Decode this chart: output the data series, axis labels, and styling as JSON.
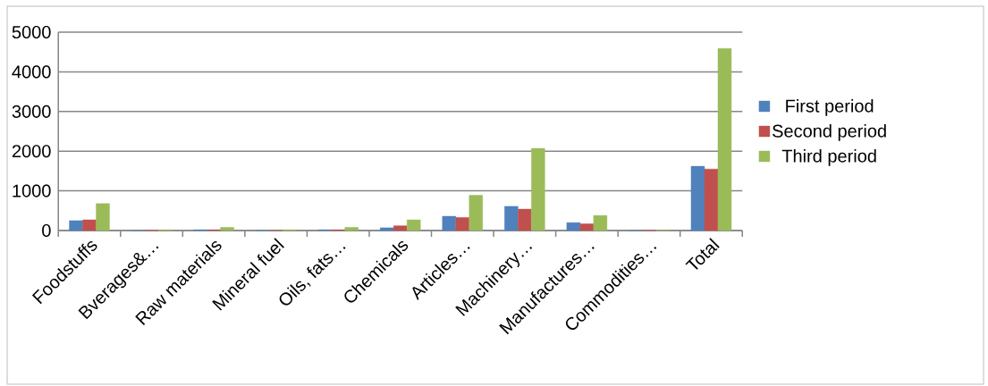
{
  "chart_data": {
    "type": "bar",
    "categories": [
      "Foodstuffs",
      "Bverages&…",
      "Raw materials",
      "Mineral fuel",
      "Oils, fats…",
      "Chemicals",
      "Articles…",
      "Machinery…",
      "Manufactures…",
      "Commodities…",
      "Total"
    ],
    "series": [
      {
        "name": "First period",
        "color": "#4f81bd",
        "values": [
          250,
          0,
          20,
          0,
          20,
          70,
          360,
          610,
          200,
          0,
          1620
        ]
      },
      {
        "name": "Second period",
        "color": "#c0504d",
        "values": [
          270,
          0,
          20,
          0,
          20,
          120,
          330,
          540,
          170,
          0,
          1550
        ]
      },
      {
        "name": "Third period",
        "color": "#9bbb59",
        "values": [
          680,
          20,
          80,
          20,
          80,
          270,
          890,
          2070,
          380,
          0,
          4590
        ]
      }
    ],
    "ylim": [
      0,
      5000
    ],
    "yticks": [
      0,
      1000,
      2000,
      3000,
      4000,
      5000
    ],
    "grid": "y",
    "legend": "right"
  }
}
